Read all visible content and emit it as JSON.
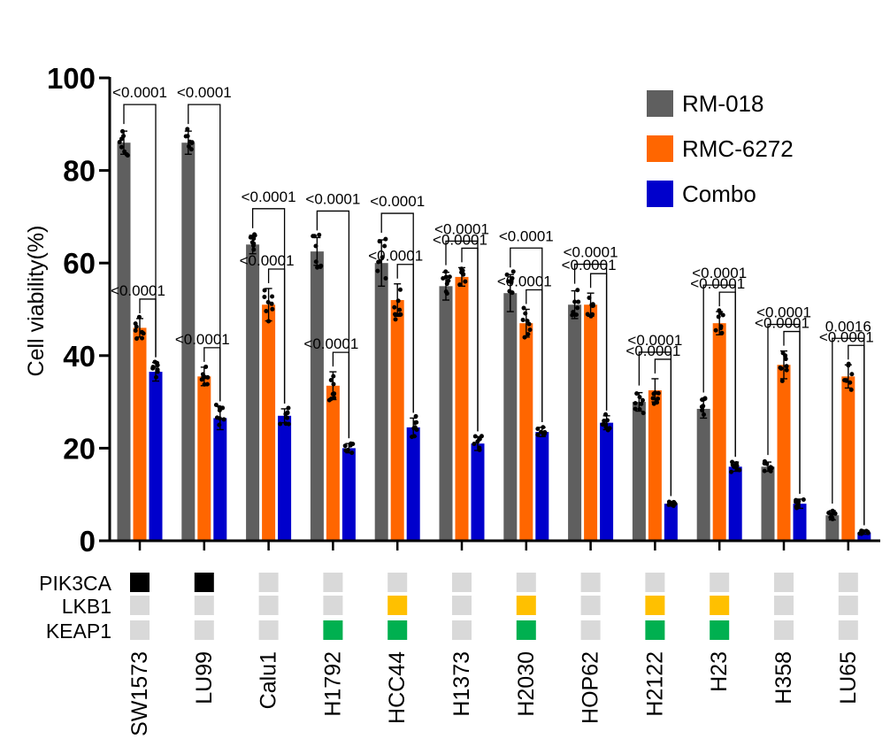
{
  "chart_data": {
    "type": "bar",
    "ylabel": "Cell viability(%)",
    "ylim": [
      0,
      100
    ],
    "yticks": [
      "0",
      "20",
      "40",
      "60",
      "80",
      "100"
    ],
    "categories": [
      "SW1573",
      "LU99",
      "Calu1",
      "H1792",
      "HCC44",
      "H1373",
      "H2030",
      "HOP62",
      "H2122",
      "H23",
      "H358",
      "LU65"
    ],
    "series": [
      {
        "name": "RM-018",
        "color": "#5f5f5f",
        "values": [
          86,
          86,
          64,
          62.5,
          60,
          55,
          53.5,
          51,
          30,
          28.5,
          16,
          5.5
        ],
        "errors": [
          2.5,
          2.5,
          2,
          3,
          5,
          3,
          4,
          3,
          2,
          2,
          1,
          1
        ]
      },
      {
        "name": "RMC-6272",
        "color": "#ff6600",
        "values": [
          46,
          35.5,
          51,
          33.5,
          52,
          57,
          47,
          51,
          32.5,
          47,
          38,
          35.5
        ],
        "errors": [
          2,
          2,
          3.5,
          3,
          3.5,
          2,
          3,
          2.5,
          2.5,
          2.5,
          3,
          2.5
        ]
      },
      {
        "name": "Combo",
        "color": "#0000cc",
        "values": [
          36.5,
          26.5,
          27,
          20,
          24.5,
          21,
          23.5,
          25.5,
          8,
          16,
          8,
          1.8
        ],
        "errors": [
          2,
          2.5,
          1.5,
          1,
          2,
          1.5,
          1,
          1.5,
          0.5,
          1,
          1,
          0.4
        ]
      }
    ],
    "comparisons": [
      {
        "label": "<0.0001",
        "label2": "<0.0001"
      },
      {
        "label": "<0.0001",
        "label2": "<0.0001"
      },
      {
        "label": "<0.0001",
        "label2": "<0.0001"
      },
      {
        "label": "<0.0001",
        "label2": "<0.0001"
      },
      {
        "label": "<0.0001",
        "label2": "<0.0001"
      },
      {
        "label": "<0.0001",
        "label2": "<0.0001"
      },
      {
        "label": "<0.0001",
        "label2": "<0.0001"
      },
      {
        "label": "<0.0001",
        "label2": "<0.0001"
      },
      {
        "label": "<0.0001",
        "label2": "<0.0001"
      },
      {
        "label": "<0.0001",
        "label2": "<0.0001"
      },
      {
        "label": "<0.0001",
        "label2": "<0.0001"
      },
      {
        "label": "0.0016",
        "label2": "<0.0001"
      }
    ],
    "mutation_rows": [
      {
        "name": "PIK3CA",
        "status": [
          "mut",
          "mut",
          "wt",
          "wt",
          "wt",
          "wt",
          "wt",
          "wt",
          "wt",
          "wt",
          "wt",
          "wt"
        ]
      },
      {
        "name": "LKB1",
        "status": [
          "wt",
          "wt",
          "wt",
          "wt",
          "mut",
          "wt",
          "mut",
          "wt",
          "mut",
          "mut",
          "wt",
          "wt"
        ]
      },
      {
        "name": "KEAP1",
        "status": [
          "wt",
          "wt",
          "wt",
          "mut",
          "mut",
          "wt",
          "mut",
          "wt",
          "mut",
          "mut",
          "wt",
          "wt"
        ]
      }
    ],
    "mutation_colors": {
      "PIK3CA": "#000000",
      "LKB1": "#ffc000",
      "KEAP1": "#00b050",
      "wt": "#d9d9d9"
    },
    "legend_position": "top-right"
  }
}
